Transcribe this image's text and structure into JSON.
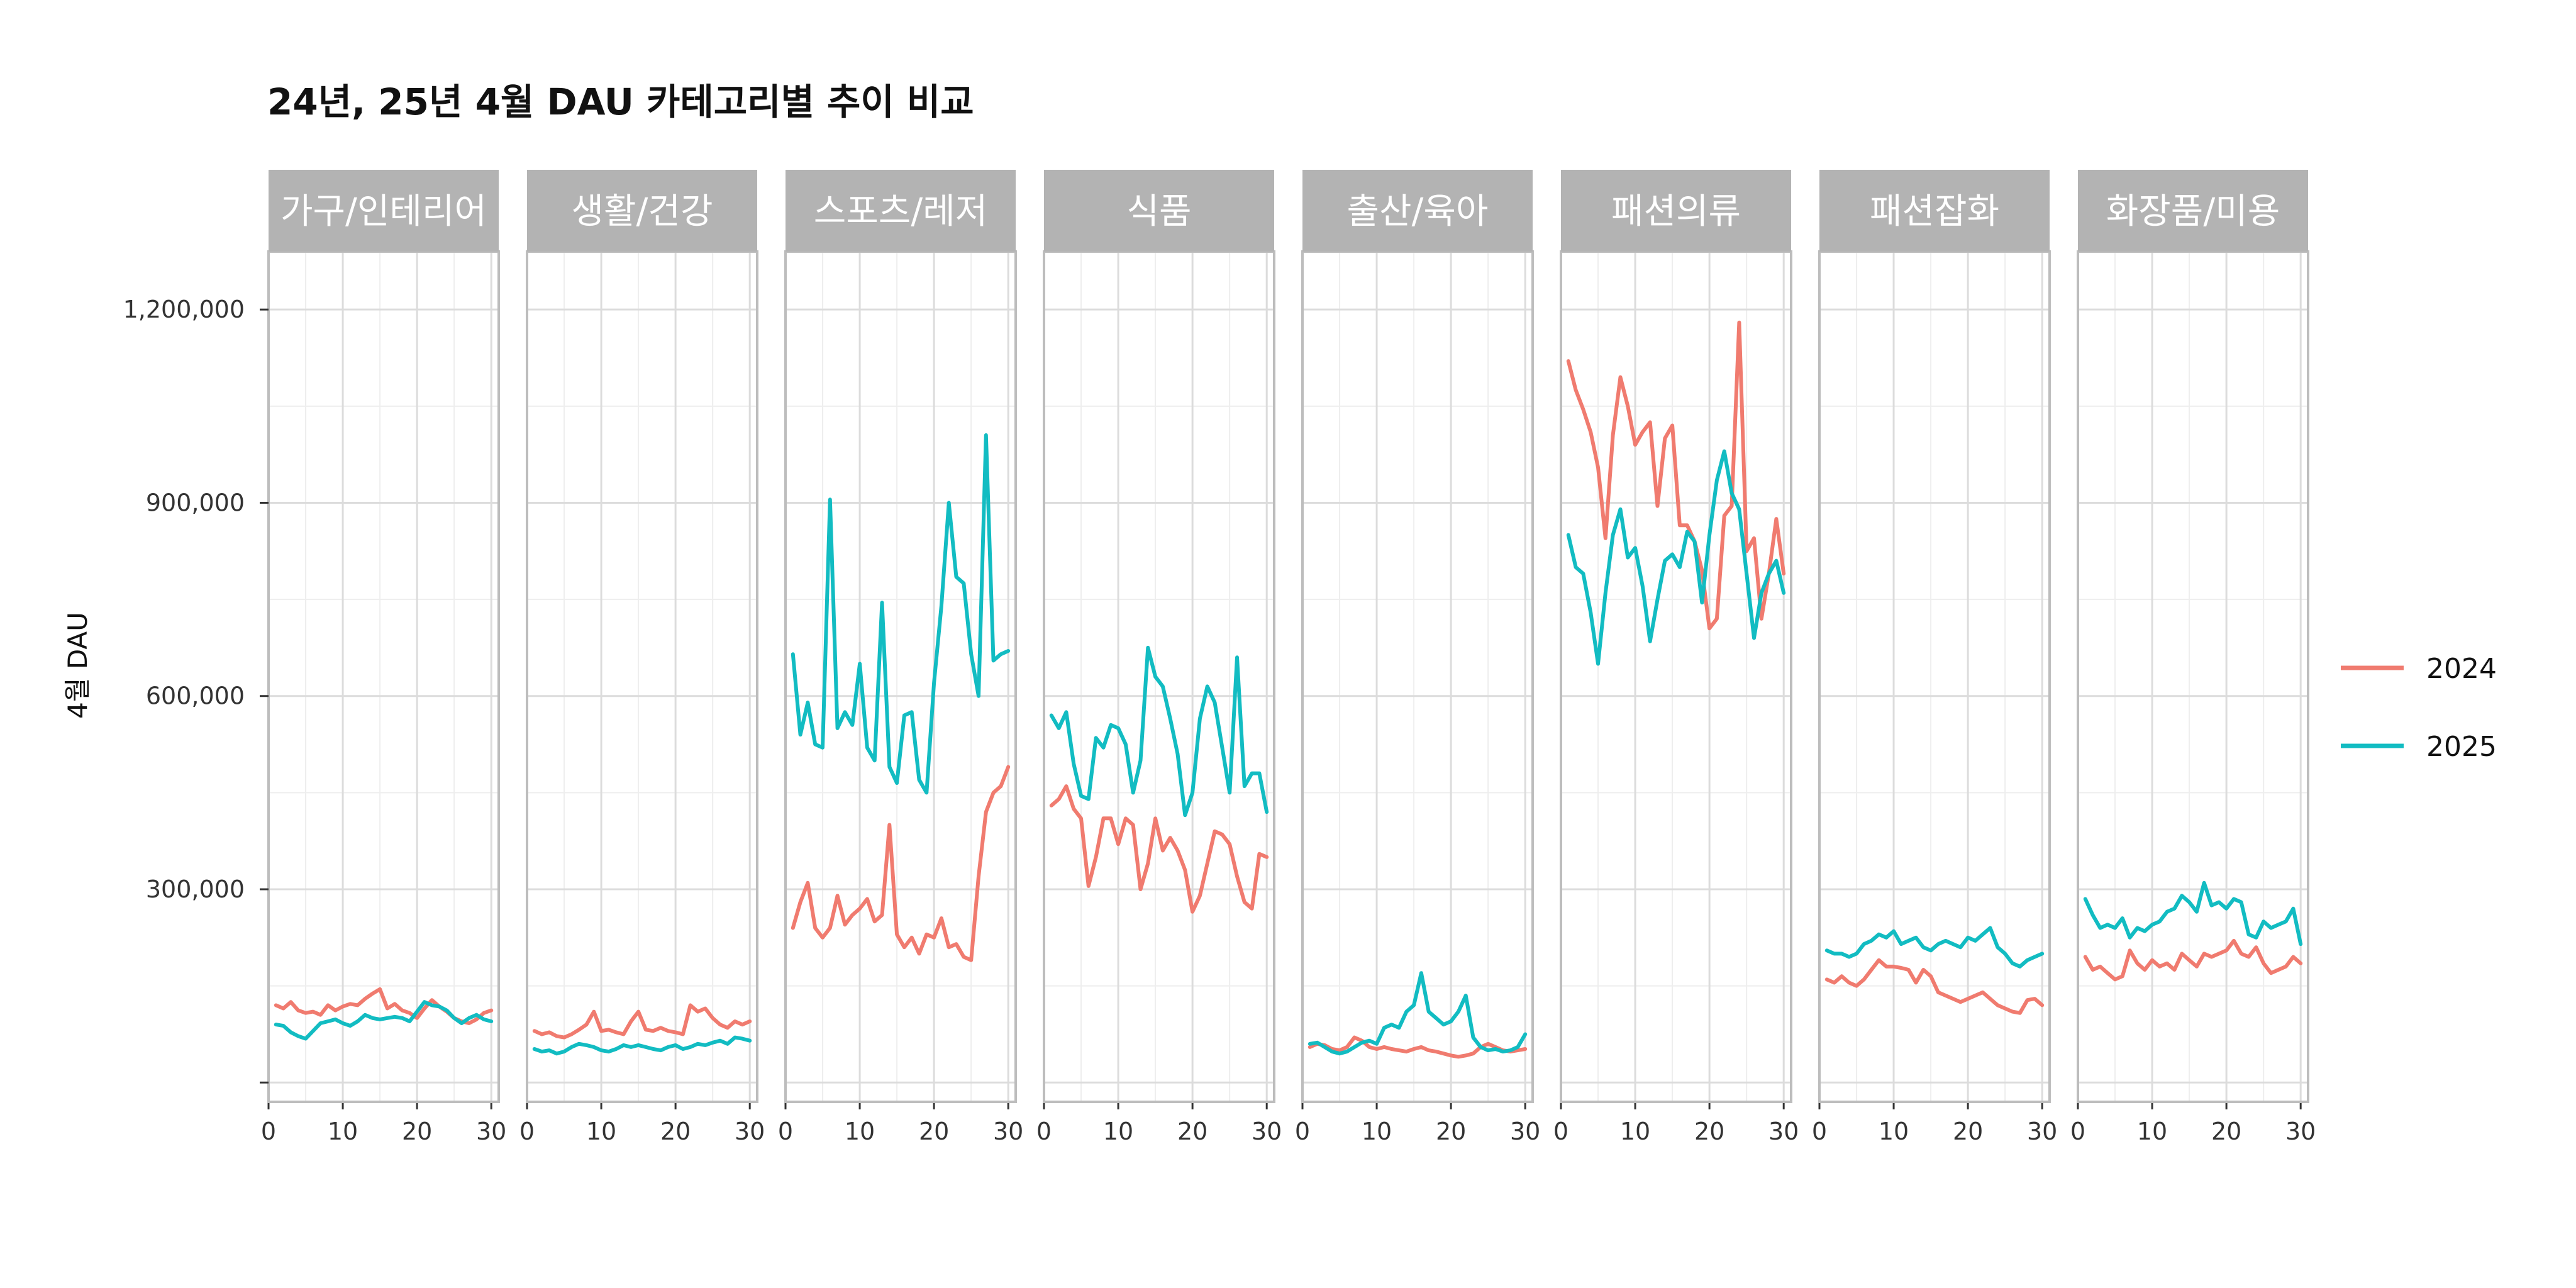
{
  "chart_data": {
    "type": "line",
    "title": "24년, 25년 4월 DAU 카테고리별 추이 비교",
    "ylabel": "4월 DAU",
    "xlabel": "",
    "xlim": [
      0,
      31
    ],
    "ylim": [
      -30000,
      1290000
    ],
    "x_ticks": [
      0,
      10,
      20,
      30
    ],
    "x_tick_labels": [
      "0",
      "10",
      "20",
      "30"
    ],
    "y_ticks": [
      0,
      300000,
      600000,
      900000,
      1200000
    ],
    "y_tick_labels": [
      "",
      "300,000",
      "600,000",
      "900,000",
      "1,200,000"
    ],
    "legend": [
      {
        "name": "2024",
        "color": "#f07b6f"
      },
      {
        "name": "2025",
        "color": "#12bcc2"
      }
    ],
    "x": [
      1,
      2,
      3,
      4,
      5,
      6,
      7,
      8,
      9,
      10,
      11,
      12,
      13,
      14,
      15,
      16,
      17,
      18,
      19,
      20,
      21,
      22,
      23,
      24,
      25,
      26,
      27,
      28,
      29,
      30
    ],
    "panels": [
      {
        "category": "가구/인테리어",
        "series": [
          {
            "name": "2024",
            "values": [
              120000,
              115000,
              125000,
              112000,
              108000,
              110000,
              105000,
              120000,
              112000,
              118000,
              122000,
              120000,
              130000,
              138000,
              145000,
              115000,
              122000,
              112000,
              108000,
              100000,
              115000,
              128000,
              118000,
              110000,
              100000,
              95000,
              92000,
              98000,
              108000,
              112000
            ]
          },
          {
            "name": "2025",
            "values": [
              90000,
              88000,
              78000,
              72000,
              68000,
              80000,
              92000,
              95000,
              98000,
              92000,
              88000,
              95000,
              105000,
              100000,
              98000,
              100000,
              102000,
              100000,
              95000,
              110000,
              125000,
              120000,
              118000,
              112000,
              100000,
              92000,
              100000,
              105000,
              98000,
              95000
            ]
          }
        ]
      },
      {
        "category": "생활/건강",
        "series": [
          {
            "name": "2024",
            "values": [
              80000,
              75000,
              78000,
              72000,
              70000,
              75000,
              82000,
              90000,
              110000,
              80000,
              82000,
              78000,
              75000,
              95000,
              110000,
              82000,
              80000,
              85000,
              80000,
              78000,
              75000,
              120000,
              110000,
              115000,
              100000,
              90000,
              85000,
              95000,
              90000,
              95000
            ]
          },
          {
            "name": "2025",
            "values": [
              52000,
              48000,
              50000,
              45000,
              48000,
              55000,
              60000,
              58000,
              55000,
              50000,
              48000,
              52000,
              58000,
              55000,
              58000,
              55000,
              52000,
              50000,
              55000,
              58000,
              52000,
              55000,
              60000,
              58000,
              62000,
              65000,
              60000,
              70000,
              68000,
              65000
            ]
          }
        ]
      },
      {
        "category": "스포츠/레저",
        "series": [
          {
            "name": "2024",
            "values": [
              240000,
              280000,
              310000,
              240000,
              225000,
              240000,
              290000,
              245000,
              260000,
              270000,
              285000,
              250000,
              260000,
              400000,
              230000,
              210000,
              225000,
              200000,
              230000,
              225000,
              255000,
              210000,
              215000,
              195000,
              190000,
              320000,
              420000,
              450000,
              460000,
              490000
            ]
          },
          {
            "name": "2025",
            "values": [
              665000,
              540000,
              590000,
              525000,
              520000,
              905000,
              550000,
              575000,
              555000,
              650000,
              520000,
              500000,
              745000,
              490000,
              465000,
              570000,
              575000,
              470000,
              450000,
              620000,
              740000,
              900000,
              785000,
              775000,
              665000,
              600000,
              1005000,
              655000,
              665000,
              670000
            ]
          }
        ]
      },
      {
        "category": "식품",
        "series": [
          {
            "name": "2024",
            "values": [
              430000,
              440000,
              460000,
              425000,
              410000,
              305000,
              350000,
              410000,
              410000,
              370000,
              410000,
              400000,
              300000,
              340000,
              410000,
              360000,
              380000,
              360000,
              330000,
              265000,
              290000,
              340000,
              390000,
              385000,
              370000,
              320000,
              280000,
              270000,
              355000,
              350000
            ]
          },
          {
            "name": "2025",
            "values": [
              570000,
              550000,
              575000,
              495000,
              445000,
              440000,
              535000,
              520000,
              555000,
              550000,
              525000,
              450000,
              500000,
              675000,
              630000,
              615000,
              565000,
              510000,
              415000,
              450000,
              565000,
              615000,
              590000,
              520000,
              450000,
              660000,
              460000,
              480000,
              480000,
              420000
            ]
          }
        ]
      },
      {
        "category": "출산/육아",
        "series": [
          {
            "name": "2024",
            "values": [
              55000,
              60000,
              58000,
              52000,
              50000,
              55000,
              70000,
              65000,
              55000,
              52000,
              55000,
              52000,
              50000,
              48000,
              52000,
              55000,
              50000,
              48000,
              45000,
              42000,
              40000,
              42000,
              45000,
              55000,
              60000,
              55000,
              50000,
              48000,
              50000,
              52000
            ]
          },
          {
            "name": "2025",
            "values": [
              60000,
              62000,
              55000,
              48000,
              45000,
              48000,
              55000,
              62000,
              65000,
              60000,
              85000,
              90000,
              85000,
              110000,
              120000,
              170000,
              110000,
              100000,
              90000,
              95000,
              110000,
              135000,
              70000,
              55000,
              50000,
              52000,
              48000,
              50000,
              55000,
              75000
            ]
          }
        ]
      },
      {
        "category": "패션의류",
        "series": [
          {
            "name": "2024",
            "values": [
              1120000,
              1075000,
              1045000,
              1010000,
              955000,
              845000,
              1005000,
              1095000,
              1050000,
              990000,
              1010000,
              1025000,
              895000,
              1000000,
              1020000,
              865000,
              865000,
              840000,
              795000,
              705000,
              720000,
              880000,
              895000,
              1180000,
              825000,
              845000,
              720000,
              790000,
              875000,
              790000
            ]
          },
          {
            "name": "2025",
            "values": [
              850000,
              800000,
              790000,
              730000,
              650000,
              760000,
              850000,
              890000,
              815000,
              830000,
              770000,
              685000,
              750000,
              810000,
              820000,
              800000,
              855000,
              840000,
              745000,
              850000,
              935000,
              980000,
              915000,
              890000,
              790000,
              690000,
              760000,
              790000,
              810000,
              760000
            ]
          }
        ]
      },
      {
        "category": "패션잡화",
        "series": [
          {
            "name": "2024",
            "values": [
              160000,
              155000,
              165000,
              155000,
              150000,
              160000,
              175000,
              190000,
              180000,
              180000,
              178000,
              175000,
              155000,
              175000,
              165000,
              140000,
              135000,
              130000,
              125000,
              130000,
              135000,
              140000,
              130000,
              120000,
              115000,
              110000,
              108000,
              128000,
              130000,
              120000
            ]
          },
          {
            "name": "2025",
            "values": [
              205000,
              200000,
              200000,
              195000,
              200000,
              215000,
              220000,
              230000,
              225000,
              235000,
              215000,
              220000,
              225000,
              210000,
              205000,
              215000,
              220000,
              215000,
              210000,
              225000,
              220000,
              230000,
              240000,
              210000,
              200000,
              185000,
              180000,
              190000,
              195000,
              200000
            ]
          }
        ]
      },
      {
        "category": "화장품/미용",
        "series": [
          {
            "name": "2024",
            "values": [
              195000,
              175000,
              180000,
              170000,
              160000,
              165000,
              205000,
              185000,
              175000,
              190000,
              180000,
              185000,
              175000,
              200000,
              190000,
              180000,
              200000,
              195000,
              200000,
              205000,
              220000,
              200000,
              195000,
              210000,
              185000,
              170000,
              175000,
              180000,
              195000,
              185000
            ]
          },
          {
            "name": "2025",
            "values": [
              285000,
              260000,
              240000,
              245000,
              240000,
              255000,
              225000,
              240000,
              235000,
              245000,
              250000,
              265000,
              270000,
              290000,
              280000,
              265000,
              310000,
              275000,
              280000,
              270000,
              285000,
              280000,
              230000,
              225000,
              250000,
              240000,
              245000,
              250000,
              270000,
              215000
            ]
          }
        ]
      }
    ]
  }
}
